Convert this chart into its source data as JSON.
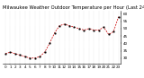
{
  "title": "Milwaukee Weather Outdoor Temperature per Hour (Last 24 Hours)",
  "hours": [
    0,
    1,
    2,
    3,
    4,
    5,
    6,
    7,
    8,
    9,
    10,
    11,
    12,
    13,
    14,
    15,
    16,
    17,
    18,
    19,
    20,
    21,
    22,
    23
  ],
  "temps": [
    33,
    34,
    33,
    32,
    31,
    30,
    30,
    31,
    34,
    40,
    47,
    52,
    53,
    52,
    51,
    50,
    49,
    50,
    49,
    49,
    51,
    46,
    48,
    58
  ],
  "line_color": "#cc0000",
  "marker_color": "#000000",
  "bg_color": "#ffffff",
  "grid_color": "#999999",
  "title_color": "#000000",
  "ylim": [
    26,
    62
  ],
  "ytick_vals": [
    30,
    35,
    40,
    45,
    50,
    55,
    60
  ],
  "ytick_labels": [
    "30",
    "35",
    "40",
    "45",
    "50",
    "55",
    "60"
  ],
  "xtick_vals": [
    0,
    1,
    2,
    3,
    4,
    5,
    6,
    7,
    8,
    9,
    10,
    11,
    12,
    13,
    14,
    15,
    16,
    17,
    18,
    19,
    20,
    21,
    22,
    23
  ],
  "title_fontsize": 3.8,
  "tick_fontsize": 3.0,
  "line_width": 0.55,
  "marker_size": 1.0
}
